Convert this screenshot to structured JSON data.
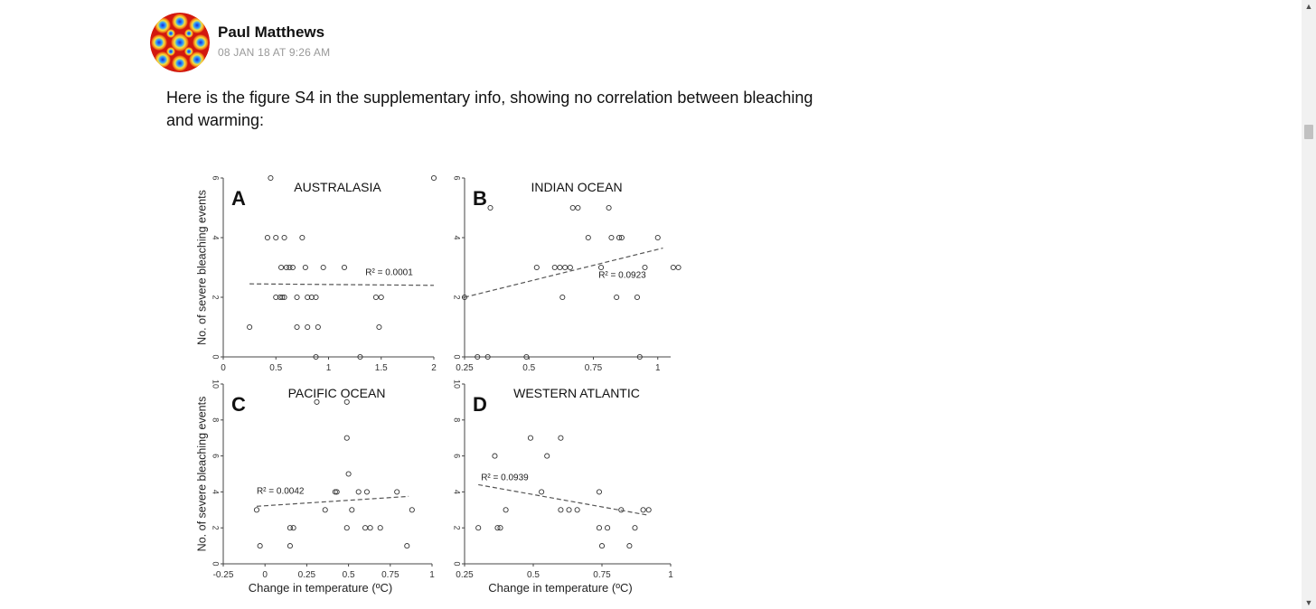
{
  "comment": {
    "author": "Paul Matthews",
    "timestamp": "08 JAN 18 AT 9:26 AM",
    "body": "Here is the figure S4 in the supplementary info, showing no correlation between bleaching and warming:",
    "avatar_icon": "avatar-icon"
  },
  "colors": {
    "author": "#111111",
    "timestamp": "#999999",
    "scrollbar": "#f1f1f1",
    "thumb": "#c1c1c1"
  },
  "scrollbar": {
    "up": "▲",
    "down": "▼"
  },
  "chart_data": [
    {
      "type": "scatter",
      "panel": "A",
      "title": "AUSTRALASIA",
      "ylabel": "No. of severe bleaching events",
      "xlim": [
        0,
        2
      ],
      "ylim": [
        0,
        6
      ],
      "xticks": [
        "0",
        "0.5",
        "1",
        "1.5",
        "2"
      ],
      "yticks": [
        "0",
        "2",
        "4",
        "6"
      ],
      "r2": "R² = 0.0001",
      "trend": [
        [
          0.25,
          2.45
        ],
        [
          2.0,
          2.4
        ]
      ],
      "points": [
        [
          0.45,
          6
        ],
        [
          2.0,
          6
        ],
        [
          0.42,
          4
        ],
        [
          0.5,
          4
        ],
        [
          0.58,
          4
        ],
        [
          0.75,
          4
        ],
        [
          0.55,
          3
        ],
        [
          0.6,
          3
        ],
        [
          0.63,
          3
        ],
        [
          0.66,
          3
        ],
        [
          0.78,
          3
        ],
        [
          0.95,
          3
        ],
        [
          1.15,
          3
        ],
        [
          0.5,
          2
        ],
        [
          0.54,
          2
        ],
        [
          0.56,
          2
        ],
        [
          0.58,
          2
        ],
        [
          0.7,
          2
        ],
        [
          0.8,
          2
        ],
        [
          0.84,
          2
        ],
        [
          0.88,
          2
        ],
        [
          1.45,
          2
        ],
        [
          1.5,
          2
        ],
        [
          0.25,
          1
        ],
        [
          0.7,
          1
        ],
        [
          0.8,
          1
        ],
        [
          0.9,
          1
        ],
        [
          1.48,
          1
        ],
        [
          0.88,
          0
        ],
        [
          1.3,
          0
        ]
      ]
    },
    {
      "type": "scatter",
      "panel": "B",
      "title": "INDIAN OCEAN",
      "ylabel": "",
      "xlim": [
        0.25,
        1.05
      ],
      "ylim": [
        0,
        6
      ],
      "xticks": [
        "0.25",
        "0.5",
        "0.75",
        "1"
      ],
      "yticks": [
        "0",
        "2",
        "4",
        "6"
      ],
      "r2": "R² = 0.0923",
      "trend": [
        [
          0.25,
          2.0
        ],
        [
          1.02,
          3.65
        ]
      ],
      "points": [
        [
          0.35,
          5
        ],
        [
          0.67,
          5
        ],
        [
          0.69,
          5
        ],
        [
          0.81,
          5
        ],
        [
          0.73,
          4
        ],
        [
          0.82,
          4
        ],
        [
          0.85,
          4
        ],
        [
          0.86,
          4
        ],
        [
          1.0,
          4
        ],
        [
          0.53,
          3
        ],
        [
          0.6,
          3
        ],
        [
          0.62,
          3
        ],
        [
          0.64,
          3
        ],
        [
          0.66,
          3
        ],
        [
          0.78,
          3
        ],
        [
          0.95,
          3
        ],
        [
          1.06,
          3
        ],
        [
          1.08,
          3
        ],
        [
          0.25,
          2
        ],
        [
          0.63,
          2
        ],
        [
          0.84,
          2
        ],
        [
          0.92,
          2
        ],
        [
          0.3,
          0
        ],
        [
          0.34,
          0
        ],
        [
          0.49,
          0
        ],
        [
          0.93,
          0
        ]
      ]
    },
    {
      "type": "scatter",
      "panel": "C",
      "title": "PACIFIC OCEAN",
      "ylabel": "No. of severe bleaching events",
      "xlabel": "Change in temperature (ºC)",
      "xlim": [
        -0.25,
        1
      ],
      "ylim": [
        0,
        10
      ],
      "xticks": [
        "-0.25",
        "0",
        "0.25",
        "0.5",
        "0.75",
        "1"
      ],
      "yticks": [
        "0",
        "2",
        "4",
        "6",
        "8",
        "10"
      ],
      "r2": "R² = 0.0042",
      "trend": [
        [
          -0.05,
          3.2
        ],
        [
          0.86,
          3.75
        ]
      ],
      "points": [
        [
          0.31,
          9
        ],
        [
          0.49,
          9
        ],
        [
          0.49,
          7
        ],
        [
          0.5,
          5
        ],
        [
          0.42,
          4
        ],
        [
          0.43,
          4
        ],
        [
          0.56,
          4
        ],
        [
          0.61,
          4
        ],
        [
          0.79,
          4
        ],
        [
          -0.05,
          3
        ],
        [
          0.36,
          3
        ],
        [
          0.52,
          3
        ],
        [
          0.88,
          3
        ],
        [
          0.15,
          2
        ],
        [
          0.17,
          2
        ],
        [
          0.49,
          2
        ],
        [
          0.6,
          2
        ],
        [
          0.63,
          2
        ],
        [
          0.69,
          2
        ],
        [
          -0.03,
          1
        ],
        [
          0.15,
          1
        ],
        [
          0.85,
          1
        ]
      ]
    },
    {
      "type": "scatter",
      "panel": "D",
      "title": "WESTERN ATLANTIC",
      "ylabel": "",
      "xlabel": "Change in temperature (ºC)",
      "xlim": [
        0.25,
        1
      ],
      "ylim": [
        0,
        10
      ],
      "xticks": [
        "0.25",
        "0.5",
        "0.75",
        "1"
      ],
      "yticks": [
        "0",
        "2",
        "4",
        "6",
        "8",
        "10"
      ],
      "r2": "R² = 0.0939",
      "trend": [
        [
          0.3,
          4.4
        ],
        [
          0.92,
          2.7
        ]
      ],
      "points": [
        [
          0.49,
          7
        ],
        [
          0.6,
          7
        ],
        [
          0.36,
          6
        ],
        [
          0.55,
          6
        ],
        [
          0.53,
          4
        ],
        [
          0.74,
          4
        ],
        [
          0.4,
          3
        ],
        [
          0.6,
          3
        ],
        [
          0.63,
          3
        ],
        [
          0.66,
          3
        ],
        [
          0.82,
          3
        ],
        [
          0.9,
          3
        ],
        [
          0.92,
          3
        ],
        [
          0.3,
          2
        ],
        [
          0.37,
          2
        ],
        [
          0.38,
          2
        ],
        [
          0.74,
          2
        ],
        [
          0.77,
          2
        ],
        [
          0.87,
          2
        ],
        [
          0.75,
          1
        ],
        [
          0.85,
          1
        ]
      ]
    }
  ]
}
